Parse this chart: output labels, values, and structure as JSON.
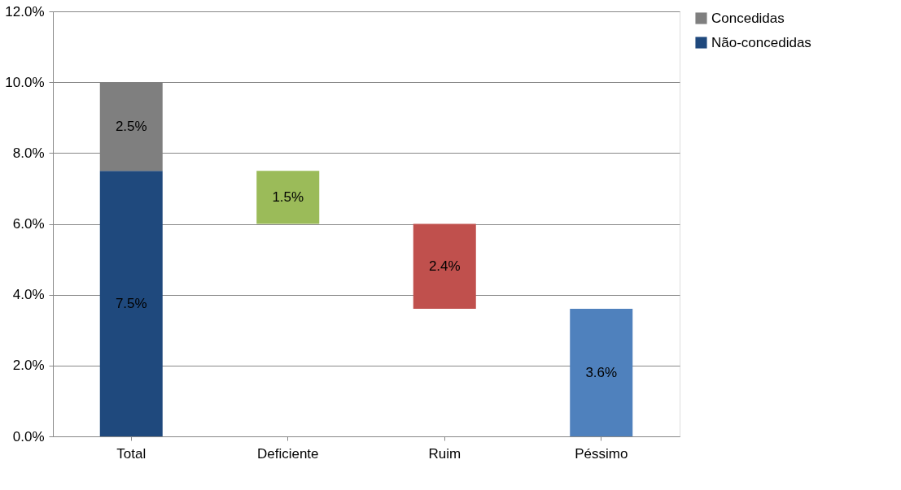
{
  "chart_data": {
    "type": "bar",
    "stacked": true,
    "categories": [
      "Total",
      "Deficiente",
      "Ruim",
      "Péssimo"
    ],
    "series": [
      {
        "name": "Não-concedidas",
        "color": "#1f497d",
        "values": [
          7.5,
          null,
          null,
          null
        ],
        "value_labels": [
          "7.5%",
          null,
          null,
          null
        ]
      },
      {
        "name": "Concedidas",
        "color": "#7f7f7f",
        "values": [
          2.5,
          null,
          null,
          null
        ],
        "value_labels": [
          "2.5%",
          null,
          null,
          null
        ]
      },
      {
        "colors": [
          null,
          "#9bbb59",
          "#c0504d",
          "#4f81bd"
        ],
        "values": [
          null,
          1.5,
          2.4,
          3.6
        ],
        "base": [
          null,
          6.0,
          3.6,
          0
        ],
        "value_labels": [
          null,
          "1.5%",
          "2.4%",
          "3.6%"
        ]
      }
    ],
    "ylim": [
      0,
      12
    ],
    "yticks": [
      {
        "value": 0,
        "label": "0.0%"
      },
      {
        "value": 2,
        "label": "2.0%"
      },
      {
        "value": 4,
        "label": "4.0%"
      },
      {
        "value": 6,
        "label": "6.0%"
      },
      {
        "value": 8,
        "label": "8.0%"
      },
      {
        "value": 10,
        "label": "10.0%"
      },
      {
        "value": 12,
        "label": "12.0%"
      }
    ],
    "grid": "y",
    "legend": "right"
  }
}
